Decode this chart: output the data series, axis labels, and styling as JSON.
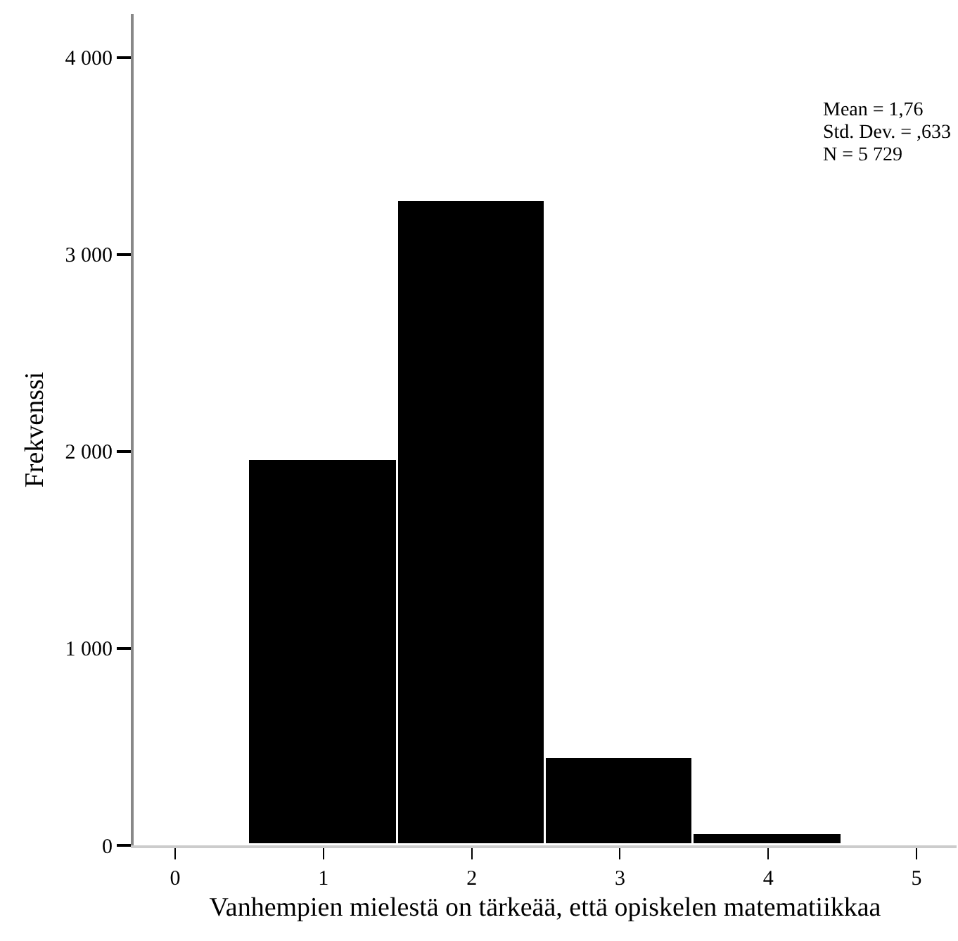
{
  "chart_data": {
    "type": "histogram",
    "xlabel": "Vanhempien mielestä on tärkeää, että opiskelen matematiikkaa",
    "ylabel": "Frekvenssi",
    "bins": [
      0.5,
      1.5,
      2.5,
      3.5,
      4.5
    ],
    "values": [
      1955,
      3270,
      440,
      60
    ],
    "color": "#000000",
    "xlim": [
      -0.28,
      5.27
    ],
    "xticks": [
      0,
      1,
      2,
      3,
      4,
      5
    ],
    "ylim": [
      0,
      4220
    ],
    "yticks": [
      {
        "value": 0,
        "label": "0"
      },
      {
        "value": 1000,
        "label": "1 000"
      },
      {
        "value": 2000,
        "label": "2 000"
      },
      {
        "value": 3000,
        "label": "3 000"
      },
      {
        "value": 4000,
        "label": "4 000"
      }
    ],
    "annotations": [
      "Mean = 1,76",
      "Std. Dev. = ,633",
      "N = 5 729"
    ]
  }
}
